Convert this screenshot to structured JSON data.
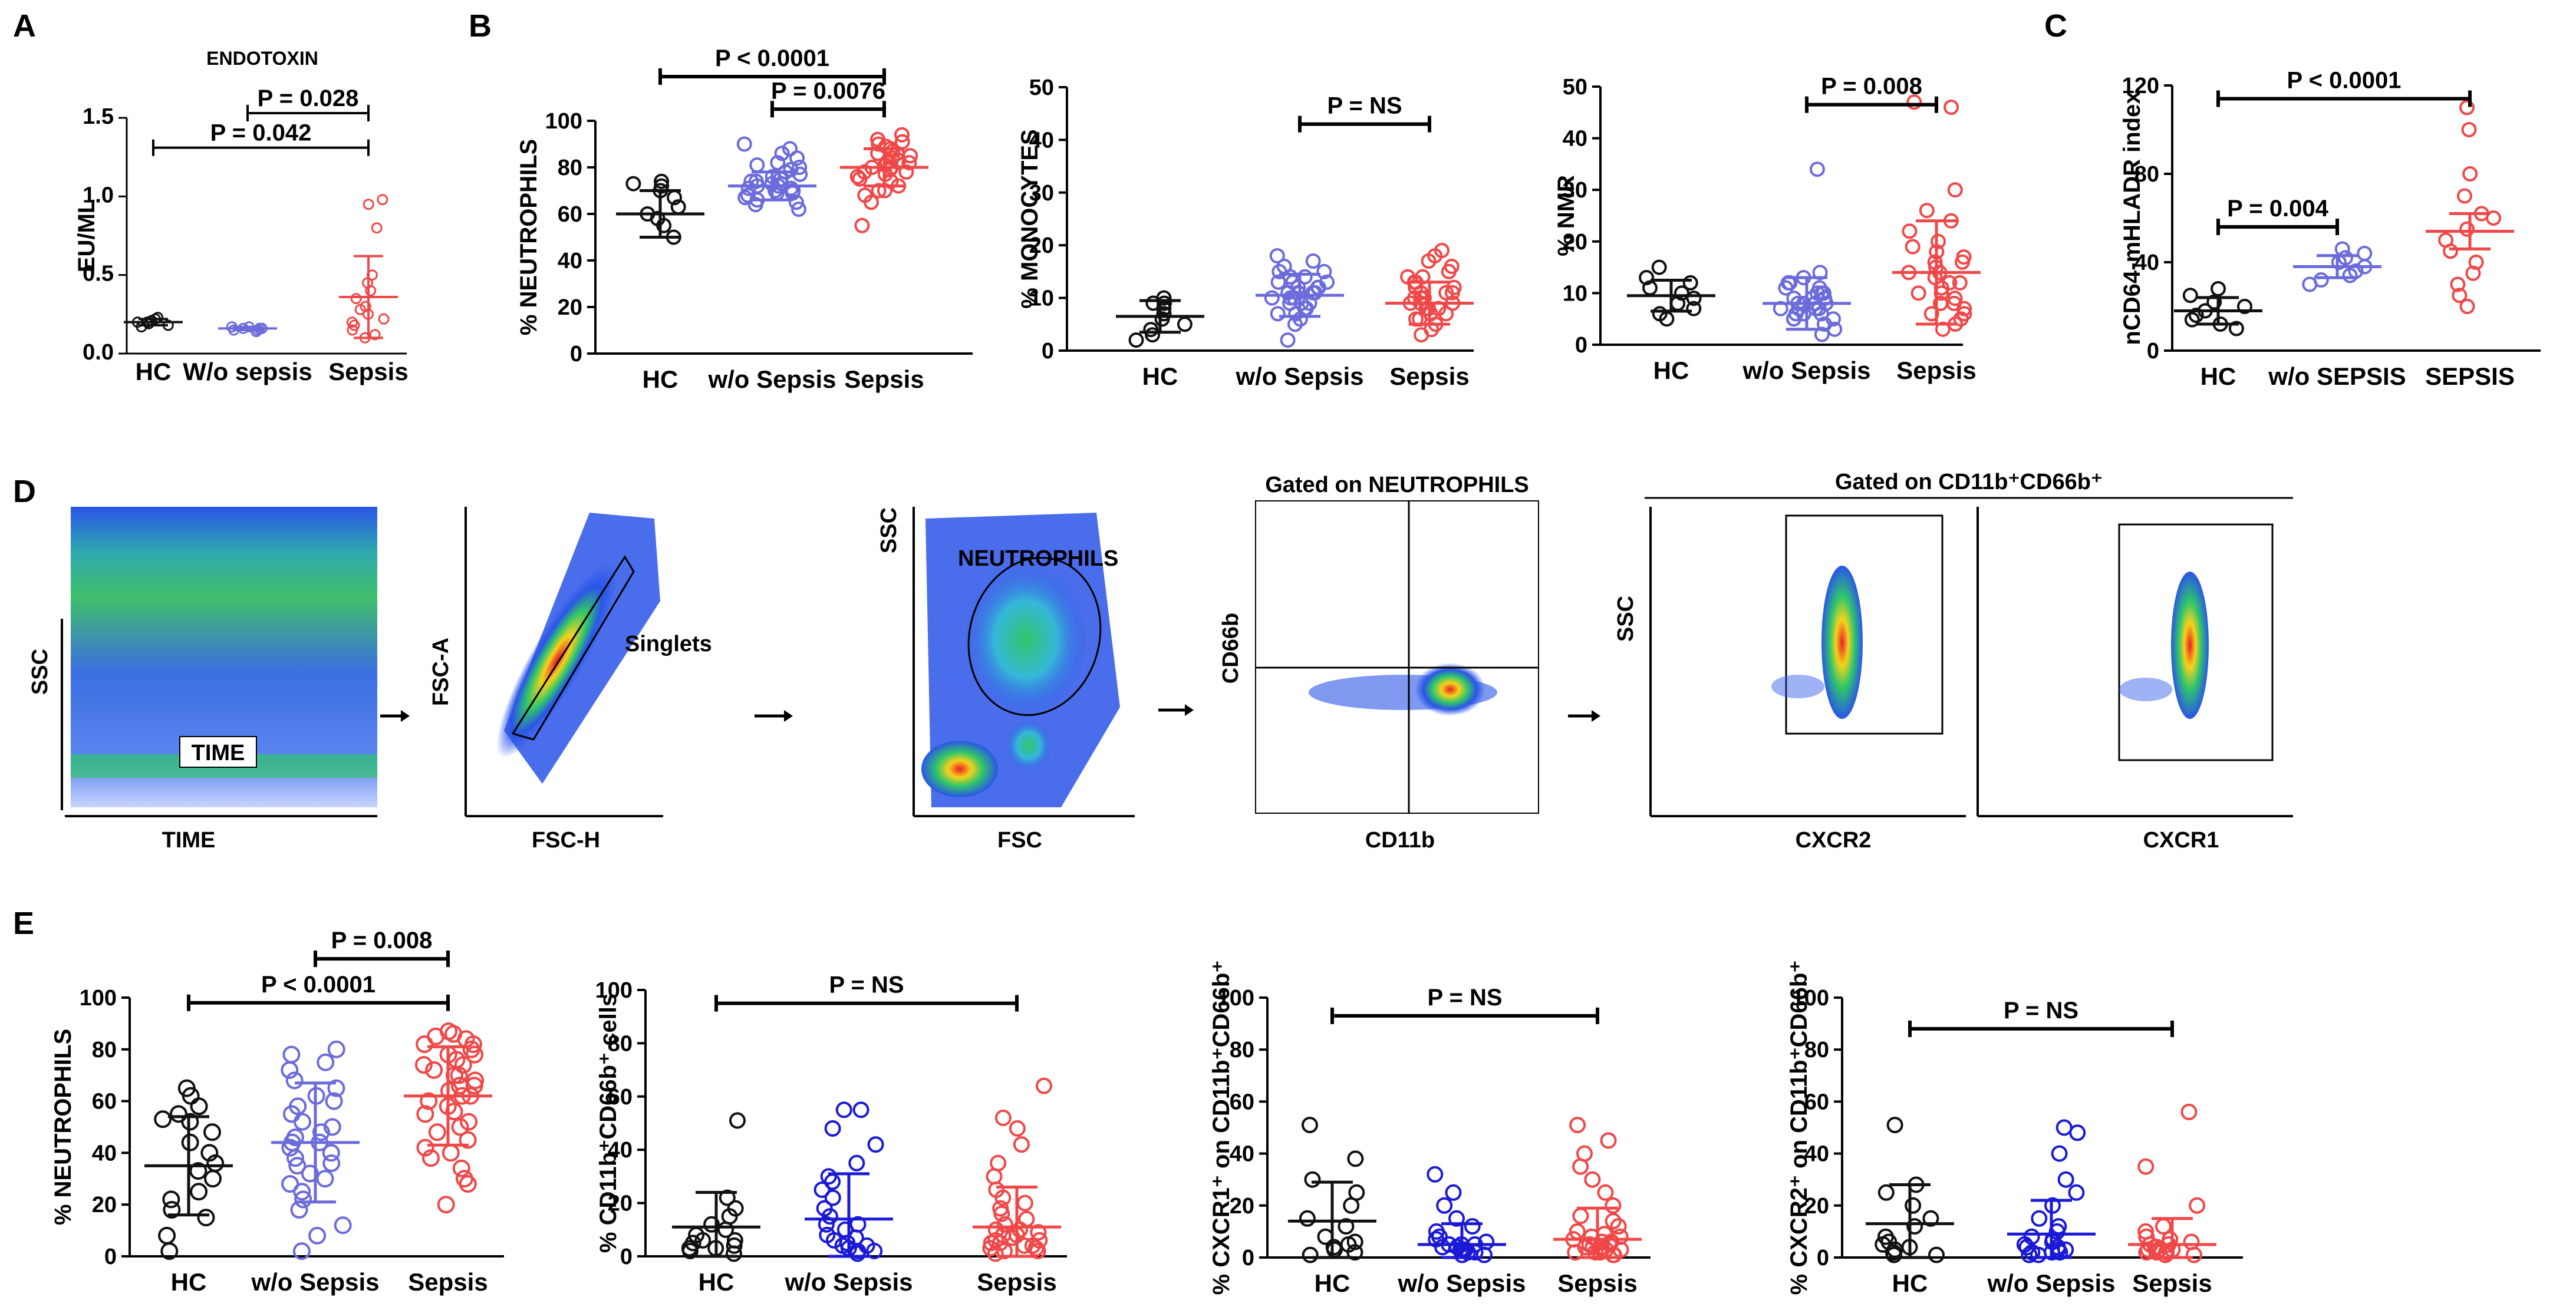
{
  "colors": {
    "HC": "#111111",
    "wo": "#6b6bdb",
    "wo_dark": "#1a1ad6",
    "sepsis": "#f04848",
    "axis": "#000000"
  },
  "panel_letters": {
    "A": "A",
    "B": "B",
    "C": "C",
    "D": "D",
    "E": "E"
  },
  "chart_data": [
    {
      "id": "A",
      "type": "scatter",
      "title": "ENDOTOXIN",
      "ylabel": "EU/ML",
      "xlabel": "",
      "ylim": [
        0,
        1.5
      ],
      "yticks": [
        "0.0",
        "0.5",
        "1.0",
        "1.5"
      ],
      "yticks_v": [
        0,
        0.5,
        1.0,
        1.5
      ],
      "categories": [
        "HC",
        "W/o sepsis",
        "Sepsis"
      ],
      "groups": [
        {
          "name": "HC",
          "points": [
            0.18,
            0.2,
            0.22,
            0.19,
            0.21,
            0.23,
            0.17,
            0.2
          ],
          "mean": 0.2,
          "sd": 0.02
        },
        {
          "name": "W/o sepsis",
          "points": [
            0.15,
            0.16,
            0.17,
            0.15,
            0.16,
            0.14,
            0.17,
            0.16
          ],
          "mean": 0.16,
          "sd": 0.01
        },
        {
          "name": "Sepsis",
          "points": [
            0.95,
            0.98,
            0.8,
            0.5,
            0.45,
            0.4,
            0.35,
            0.3,
            0.28,
            0.25,
            0.22,
            0.2,
            0.18,
            0.15,
            0.12,
            0.1
          ],
          "mean": 0.36,
          "sd": 0.26
        }
      ],
      "brackets": [
        {
          "from": 0,
          "to": 2,
          "label": "P = 0.042",
          "y": 1.31
        },
        {
          "from": 1,
          "to": 2,
          "label": "P = 0.028",
          "y": 1.53
        }
      ]
    },
    {
      "id": "B1",
      "type": "scatter",
      "ylabel": "% NEUTROPHILS",
      "ylim": [
        0,
        100
      ],
      "yticks": [
        "0",
        "20",
        "40",
        "60",
        "80",
        "100"
      ],
      "yticks_v": [
        0,
        20,
        40,
        60,
        80,
        100
      ],
      "categories": [
        "HC",
        "w/o Sepsis",
        "Sepsis"
      ],
      "groups": [
        {
          "name": "HC",
          "points": [
            50,
            55,
            58,
            60,
            63,
            67,
            70,
            72,
            74,
            73
          ],
          "mean": 60,
          "sd": 10
        },
        {
          "name": "w/o Sepsis",
          "points": [
            62,
            64,
            66,
            67,
            68,
            69,
            70,
            70,
            71,
            72,
            72,
            73,
            74,
            74,
            75,
            76,
            77,
            78,
            79,
            80,
            81,
            82,
            84,
            86,
            88,
            90,
            65,
            69,
            71,
            73
          ],
          "mean": 72,
          "sd": 6
        },
        {
          "name": "Sepsis",
          "points": [
            55,
            65,
            68,
            70,
            72,
            74,
            75,
            76,
            77,
            78,
            79,
            80,
            80,
            81,
            82,
            83,
            84,
            85,
            86,
            87,
            88,
            89,
            90,
            92,
            94,
            70,
            78,
            82,
            86,
            91
          ],
          "mean": 80,
          "sd": 8
        }
      ],
      "brackets": [
        {
          "from": 0,
          "to": 2,
          "label": "P < 0.0001",
          "y": 119
        },
        {
          "from": 1,
          "to": 2,
          "label": "P = 0.0076",
          "y": 105
        }
      ]
    },
    {
      "id": "B2",
      "type": "scatter",
      "ylabel": "% MONOCYTES",
      "ylim": [
        0,
        50
      ],
      "yticks": [
        "0",
        "10",
        "20",
        "30",
        "40",
        "50"
      ],
      "yticks_v": [
        0,
        10,
        20,
        30,
        40,
        50
      ],
      "categories": [
        "HC",
        "w/o Sepsis",
        "Sepsis"
      ],
      "groups": [
        {
          "name": "HC",
          "points": [
            2,
            3,
            4,
            5,
            6,
            7,
            8,
            9,
            10,
            9
          ],
          "mean": 6.5,
          "sd": 3
        },
        {
          "name": "w/o Sepsis",
          "points": [
            2,
            5,
            6,
            7,
            8,
            9,
            9,
            10,
            10,
            11,
            11,
            12,
            12,
            13,
            13,
            14,
            15,
            16,
            17,
            18,
            10,
            9,
            11,
            12,
            8,
            7,
            14,
            13,
            15,
            11
          ],
          "mean": 10.5,
          "sd": 4
        },
        {
          "name": "Sepsis",
          "points": [
            3,
            4,
            5,
            6,
            7,
            8,
            8,
            9,
            9,
            10,
            10,
            11,
            11,
            12,
            13,
            14,
            15,
            16,
            17,
            18,
            19,
            6,
            7,
            9,
            10,
            12,
            13,
            8,
            11,
            14
          ],
          "mean": 9,
          "sd": 4
        }
      ],
      "brackets": [
        {
          "from": 1,
          "to": 2,
          "label": "P = NS",
          "y": 43
        }
      ]
    },
    {
      "id": "B3",
      "type": "scatter",
      "ylabel": "% NMR",
      "ylim": [
        0,
        50
      ],
      "yticks": [
        "0",
        "10",
        "20",
        "30",
        "40",
        "50"
      ],
      "yticks_v": [
        0,
        10,
        20,
        30,
        40,
        50
      ],
      "categories": [
        "HC",
        "w/o Sepsis",
        "Sepsis"
      ],
      "groups": [
        {
          "name": "HC",
          "points": [
            5,
            6,
            7,
            8,
            9,
            10,
            11,
            12,
            13,
            15
          ],
          "mean": 9.5,
          "sd": 3
        },
        {
          "name": "w/o Sepsis",
          "points": [
            2,
            3,
            4,
            5,
            5,
            6,
            6,
            7,
            7,
            8,
            8,
            8,
            9,
            9,
            10,
            10,
            11,
            12,
            13,
            14,
            34,
            6,
            7,
            9,
            10,
            5,
            8,
            11,
            12,
            7
          ],
          "mean": 8,
          "sd": 5
        },
        {
          "name": "Sepsis",
          "points": [
            3,
            4,
            5,
            6,
            7,
            8,
            9,
            10,
            11,
            12,
            13,
            14,
            15,
            16,
            17,
            18,
            20,
            22,
            24,
            26,
            30,
            46,
            47,
            10,
            12,
            14,
            16,
            8,
            6,
            19
          ],
          "mean": 14,
          "sd": 10
        }
      ],
      "brackets": [
        {
          "from": 1,
          "to": 2,
          "label": "P = 0.008",
          "y": 46.5
        }
      ]
    },
    {
      "id": "C",
      "type": "scatter",
      "ylabel": "nCD64-mHLADR index",
      "ylim": [
        0,
        120
      ],
      "yticks": [
        "0",
        "40",
        "80",
        "120"
      ],
      "yticks_v": [
        0,
        40,
        80,
        120
      ],
      "categories": [
        "HC",
        "w/o SEPSIS",
        "SEPSIS"
      ],
      "groups": [
        {
          "name": "HC",
          "points": [
            10,
            12,
            14,
            16,
            18,
            20,
            22,
            25,
            28
          ],
          "mean": 18,
          "sd": 6
        },
        {
          "name": "w/o SEPSIS",
          "points": [
            30,
            32,
            34,
            36,
            38,
            40,
            42,
            44,
            46
          ],
          "mean": 38,
          "sd": 5
        },
        {
          "name": "SEPSIS",
          "points": [
            20,
            25,
            30,
            35,
            40,
            45,
            50,
            55,
            60,
            62,
            70,
            80,
            100,
            110
          ],
          "mean": 54,
          "sd": 8
        }
      ],
      "brackets": [
        {
          "from": 0,
          "to": 1,
          "label": "P = 0.004",
          "y": 56
        },
        {
          "from": 0,
          "to": 2,
          "label": "P < 0.0001",
          "y": 114
        }
      ]
    },
    {
      "id": "E1",
      "type": "scatter",
      "ylabel": "% NEUTROPHILS",
      "ylim": [
        0,
        100
      ],
      "yticks": [
        "0",
        "20",
        "40",
        "60",
        "80",
        "100"
      ],
      "yticks_v": [
        0,
        20,
        40,
        60,
        80,
        100
      ],
      "categories": [
        "HC",
        "w/o Sepsis",
        "Sepsis"
      ],
      "groups": [
        {
          "name": "HC",
          "points": [
            2,
            8,
            15,
            18,
            22,
            25,
            30,
            33,
            36,
            40,
            44,
            48,
            52,
            55,
            58,
            62,
            65,
            53
          ],
          "mean": 35,
          "sd": 19
        },
        {
          "name": "w/o Sepsis",
          "points": [
            2,
            8,
            12,
            18,
            22,
            25,
            28,
            32,
            35,
            38,
            40,
            42,
            44,
            46,
            48,
            52,
            55,
            58,
            60,
            62,
            65,
            68,
            72,
            75,
            78,
            80,
            50,
            36,
            30,
            44
          ],
          "mean": 44,
          "sd": 23
        },
        {
          "name": "Sepsis",
          "points": [
            20,
            28,
            34,
            38,
            42,
            45,
            48,
            52,
            55,
            58,
            60,
            62,
            64,
            66,
            68,
            70,
            72,
            74,
            76,
            78,
            80,
            82,
            84,
            86,
            87,
            30,
            40,
            50,
            62,
            70,
            78,
            85,
            56,
            66,
            74,
            82
          ],
          "mean": 62,
          "sd": 19
        }
      ],
      "brackets": [
        {
          "from": 0,
          "to": 2,
          "label": "P < 0.0001",
          "y": 98
        },
        {
          "from": 1,
          "to": 2,
          "label": "P = 0.008",
          "y": 115
        }
      ]
    },
    {
      "id": "E2",
      "type": "scatter",
      "ylabel": "% CD11b⁺CD66b⁺ cells",
      "ylim": [
        0,
        100
      ],
      "yticks": [
        "0",
        "20",
        "40",
        "60",
        "80",
        "100"
      ],
      "yticks_v": [
        0,
        20,
        40,
        60,
        80,
        100
      ],
      "categories": [
        "HC",
        "w/o Sepsis",
        "Sepsis"
      ],
      "groups": [
        {
          "name": "HC",
          "points": [
            1,
            2,
            3,
            4,
            5,
            6,
            8,
            10,
            12,
            15,
            18,
            22,
            51,
            3,
            6
          ],
          "mean": 11,
          "sd": 13
        },
        {
          "name": "w/o Sepsis",
          "points": [
            1,
            2,
            3,
            4,
            5,
            6,
            8,
            10,
            12,
            15,
            18,
            22,
            28,
            35,
            42,
            48,
            55,
            55,
            30,
            25,
            2,
            4,
            7,
            12
          ],
          "mean": 14,
          "sd": 17
        },
        {
          "name": "Sepsis",
          "points": [
            1,
            2,
            3,
            4,
            5,
            6,
            7,
            8,
            9,
            10,
            12,
            14,
            16,
            18,
            20,
            22,
            25,
            30,
            35,
            42,
            48,
            52,
            64,
            4,
            6,
            8,
            2,
            3,
            5,
            10
          ],
          "mean": 11,
          "sd": 15
        }
      ],
      "brackets": [
        {
          "from": 0,
          "to": 2,
          "label": "P = NS",
          "y": 95
        }
      ]
    },
    {
      "id": "E3",
      "type": "scatter",
      "ylabel": "% CXCR1⁺ on CD11b⁺CD66b⁺",
      "ylim": [
        0,
        100
      ],
      "yticks": [
        "0",
        "20",
        "40",
        "60",
        "80",
        "100"
      ],
      "yticks_v": [
        0,
        20,
        40,
        60,
        80,
        100
      ],
      "categories": [
        "HC",
        "w/o Sepsis",
        "Sepsis"
      ],
      "groups": [
        {
          "name": "HC",
          "points": [
            1,
            2,
            3,
            5,
            8,
            12,
            15,
            20,
            25,
            30,
            38,
            51,
            4,
            6
          ],
          "mean": 14,
          "sd": 15
        },
        {
          "name": "w/o Sepsis",
          "points": [
            1,
            1,
            2,
            2,
            3,
            3,
            4,
            4,
            5,
            5,
            6,
            7,
            8,
            10,
            12,
            15,
            20,
            25,
            32,
            2,
            3,
            5
          ],
          "mean": 5,
          "sd": 8
        },
        {
          "name": "Sepsis",
          "points": [
            1,
            1,
            2,
            2,
            3,
            3,
            4,
            4,
            5,
            5,
            6,
            7,
            8,
            9,
            10,
            12,
            14,
            16,
            20,
            25,
            30,
            35,
            40,
            45,
            51,
            3,
            6,
            2,
            4,
            8
          ],
          "mean": 7,
          "sd": 12
        }
      ],
      "brackets": [
        {
          "from": 0,
          "to": 2,
          "label": "P = NS",
          "y": 93
        }
      ]
    },
    {
      "id": "E4",
      "type": "scatter",
      "ylabel": "% CXCR2⁺ on CD11b⁺CD66b⁺",
      "ylim": [
        0,
        100
      ],
      "yticks": [
        "0",
        "20",
        "40",
        "60",
        "80",
        "100"
      ],
      "yticks_v": [
        0,
        20,
        40,
        60,
        80,
        100
      ],
      "categories": [
        "HC",
        "w/o Sepsis",
        "Sepsis"
      ],
      "groups": [
        {
          "name": "HC",
          "points": [
            1,
            2,
            3,
            5,
            8,
            12,
            15,
            20,
            25,
            28,
            51,
            4,
            6,
            1
          ],
          "mean": 13,
          "sd": 15
        },
        {
          "name": "w/o Sepsis",
          "points": [
            1,
            1,
            2,
            2,
            3,
            3,
            4,
            5,
            6,
            8,
            10,
            12,
            15,
            20,
            25,
            30,
            40,
            48,
            50,
            2,
            4,
            7
          ],
          "mean": 9,
          "sd": 13
        },
        {
          "name": "Sepsis",
          "points": [
            1,
            1,
            2,
            2,
            3,
            3,
            4,
            4,
            5,
            5,
            6,
            7,
            8,
            10,
            12,
            20,
            35,
            56,
            2,
            3
          ],
          "mean": 5,
          "sd": 10
        }
      ],
      "brackets": [
        {
          "from": 0,
          "to": 2,
          "label": "P = NS",
          "y": 88
        }
      ]
    }
  ],
  "flow": {
    "panel1": {
      "ylabel": "SSC",
      "xlabel": "TIME",
      "inner_label": "TIME"
    },
    "panel2": {
      "ylabel": "FSC-A",
      "xlabel": "FSC-H",
      "gate_label": "Singlets"
    },
    "panel3": {
      "ylabel": "SSC",
      "xlabel": "FSC",
      "gate_label": "NEUTROPHILS"
    },
    "panel4": {
      "ylabel": "CD66b",
      "xlabel": "CD11b",
      "title": "Gated on NEUTROPHILS"
    },
    "panel5": {
      "ylabel": "SSC",
      "xlabel": "CXCR2"
    },
    "panel6": {
      "xlabel": "CXCR1"
    },
    "group_title": "Gated on CD11b⁺CD66b⁺"
  }
}
